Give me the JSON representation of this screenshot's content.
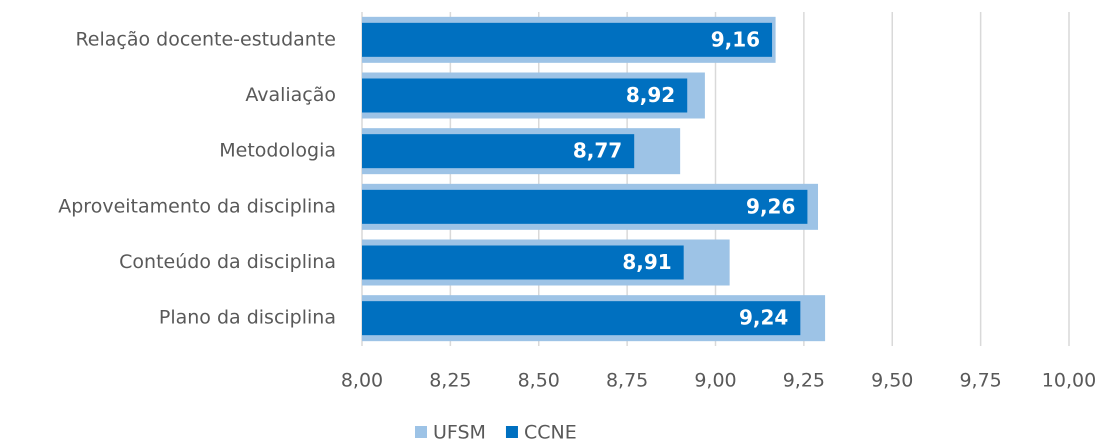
{
  "chart_data": {
    "type": "bar",
    "orientation": "horizontal",
    "categories": [
      "Relação docente-estudante",
      "Avaliação",
      "Metodologia",
      "Aproveitamento da disciplina",
      "Conteúdo da disciplina",
      "Plano da disciplina"
    ],
    "series": [
      {
        "name": "UFSM",
        "color": "#9dc3e6",
        "values": [
          9.17,
          8.97,
          8.9,
          9.29,
          9.04,
          9.31
        ]
      },
      {
        "name": "CCNE",
        "color": "#0070c0",
        "values": [
          9.16,
          8.92,
          8.77,
          9.26,
          8.91,
          9.24
        ],
        "value_labels": [
          "9,16",
          "8,92",
          "8,77",
          "9,26",
          "8,91",
          "9,24"
        ]
      }
    ],
    "xlim": [
      8,
      10
    ],
    "xticks": [
      {
        "value": 8,
        "label": "8,00"
      },
      {
        "value": 8.25,
        "label": "8,25"
      },
      {
        "value": 8.5,
        "label": "8,50"
      },
      {
        "value": 8.75,
        "label": "8,75"
      },
      {
        "value": 9,
        "label": "9,00"
      },
      {
        "value": 9.25,
        "label": "9,25"
      },
      {
        "value": 9.5,
        "label": "9,50"
      },
      {
        "value": 9.75,
        "label": "9,75"
      },
      {
        "value": 10,
        "label": "10,00"
      }
    ],
    "grid": true,
    "legend": "bottom"
  }
}
